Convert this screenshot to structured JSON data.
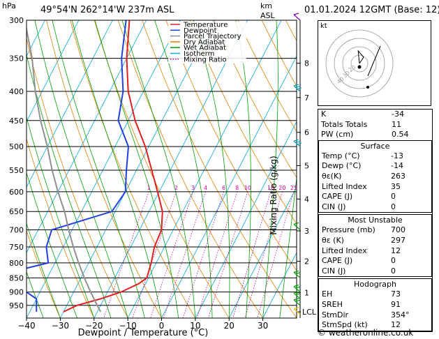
{
  "header": {
    "location": "49°54'N  262°14'W  237m  ASL",
    "datetime": "01.01.2024  12GMT  (Base: 12)",
    "hpa_label": "hPa",
    "km_label": "km",
    "asl_label": "ASL"
  },
  "chart_data": {
    "type": "line",
    "subtype": "skew-T log-P sounding",
    "xlabel": "Dewpoint / Temperature (°C)",
    "ylabel": "hPa",
    "mixing_ratio_axis_label": "Mixing Ratio (g/kg)",
    "x_ticks": [
      "−40",
      "−30",
      "−20",
      "−10",
      "0",
      "10",
      "20",
      "30"
    ],
    "y_ticks": [
      300,
      350,
      400,
      450,
      500,
      550,
      600,
      650,
      700,
      750,
      800,
      850,
      900,
      950
    ],
    "km_ticks": [
      {
        "km": "8",
        "p": 357
      },
      {
        "km": "7",
        "p": 410
      },
      {
        "km": "6",
        "p": 472
      },
      {
        "km": "5",
        "p": 540
      },
      {
        "km": "4",
        "p": 618
      },
      {
        "km": "3",
        "p": 703
      },
      {
        "km": "2",
        "p": 795
      },
      {
        "km": "1",
        "p": 902
      },
      {
        "km": "LCL",
        "p": 975
      }
    ],
    "mixing_ratio_labels": [
      "1",
      "2",
      "3",
      "4",
      "6",
      "8",
      "10",
      "16",
      "20",
      "25"
    ],
    "mixing_ratio_values": [
      1,
      2,
      3,
      4,
      6,
      8,
      10,
      16,
      20,
      25
    ],
    "legend": [
      {
        "name": "Temperature",
        "color": "#e02020"
      },
      {
        "name": "Dewpoint",
        "color": "#2040e0"
      },
      {
        "name": "Parcel Trajectory",
        "color": "#909090"
      },
      {
        "name": "Dry Adiabat",
        "color": "#e08000"
      },
      {
        "name": "Wet Adiabat",
        "color": "#00a000"
      },
      {
        "name": "Isotherm",
        "color": "#00b0e0"
      },
      {
        "name": "Mixing Ratio",
        "color": "#d000a0"
      }
    ],
    "series": [
      {
        "name": "Temperature",
        "color": "#e02020",
        "points": [
          [
            300,
            -55
          ],
          [
            350,
            -50
          ],
          [
            400,
            -44.5
          ],
          [
            450,
            -38
          ],
          [
            500,
            -31
          ],
          [
            550,
            -25.5
          ],
          [
            600,
            -20.5
          ],
          [
            650,
            -16
          ],
          [
            700,
            -13.5
          ],
          [
            750,
            -13
          ],
          [
            800,
            -11.5
          ],
          [
            850,
            -10.5
          ],
          [
            870,
            -12
          ],
          [
            900,
            -16
          ],
          [
            925,
            -21
          ],
          [
            950,
            -27
          ],
          [
            975,
            -30
          ]
        ]
      },
      {
        "name": "Dewpoint",
        "color": "#2040e0",
        "points": [
          [
            300,
            -56
          ],
          [
            350,
            -51.5
          ],
          [
            400,
            -46
          ],
          [
            450,
            -43
          ],
          [
            500,
            -36
          ],
          [
            550,
            -33
          ],
          [
            600,
            -30
          ],
          [
            650,
            -31
          ],
          [
            700,
            -46
          ],
          [
            750,
            -45
          ],
          [
            800,
            -42
          ],
          [
            850,
            -58
          ],
          [
            900,
            -44
          ],
          [
            925,
            -40
          ],
          [
            950,
            -39
          ],
          [
            975,
            -38
          ]
        ]
      },
      {
        "name": "Parcel Trajectory",
        "color": "#909090",
        "points": [
          [
            300,
            -86
          ],
          [
            350,
            -78
          ],
          [
            400,
            -72
          ],
          [
            450,
            -66
          ],
          [
            500,
            -60
          ],
          [
            550,
            -55
          ],
          [
            600,
            -50
          ],
          [
            650,
            -45
          ],
          [
            700,
            -41
          ],
          [
            750,
            -37
          ],
          [
            800,
            -33
          ],
          [
            850,
            -29
          ],
          [
            900,
            -25
          ],
          [
            950,
            -21
          ],
          [
            975,
            -19
          ]
        ]
      }
    ],
    "xlim": [
      -40,
      40
    ],
    "ylim": [
      300,
      1000
    ],
    "ylog": true
  },
  "hodograph": {
    "label": "kt",
    "ring_labels": [
      "40",
      "30",
      "20"
    ],
    "points": [
      [
        0,
        0
      ],
      [
        1,
        -1.5
      ],
      [
        -0.3,
        -3
      ],
      [
        2,
        3
      ],
      [
        5,
        -5
      ]
    ]
  },
  "stats": {
    "general": [
      {
        "label": "K",
        "value": "-34"
      },
      {
        "label": "Totals Totals",
        "value": "11"
      },
      {
        "label": "PW (cm)",
        "value": "0.54"
      }
    ],
    "surface": {
      "title": "Surface",
      "rows": [
        {
          "label": "Temp (°C)",
          "value": "-13"
        },
        {
          "label": "Dewp (°C)",
          "value": "-14"
        },
        {
          "label": "θε(K)",
          "value": "263"
        },
        {
          "label": "Lifted Index",
          "value": "35"
        },
        {
          "label": "CAPE (J)",
          "value": "0"
        },
        {
          "label": "CIN (J)",
          "value": "0"
        }
      ]
    },
    "most_unstable": {
      "title": "Most Unstable",
      "rows": [
        {
          "label": "Pressure (mb)",
          "value": "700"
        },
        {
          "label": "θε (K)",
          "value": "297"
        },
        {
          "label": "Lifted Index",
          "value": "12"
        },
        {
          "label": "CAPE (J)",
          "value": "0"
        },
        {
          "label": "CIN (J)",
          "value": "0"
        }
      ]
    },
    "hodograph": {
      "title": "Hodograph",
      "rows": [
        {
          "label": "EH",
          "value": "73"
        },
        {
          "label": "SREH",
          "value": "91"
        },
        {
          "label": "StmDir",
          "value": "354°"
        },
        {
          "label": "StmSpd (kt)",
          "value": "12"
        }
      ]
    }
  },
  "credit": "© weatheronline.co.uk"
}
